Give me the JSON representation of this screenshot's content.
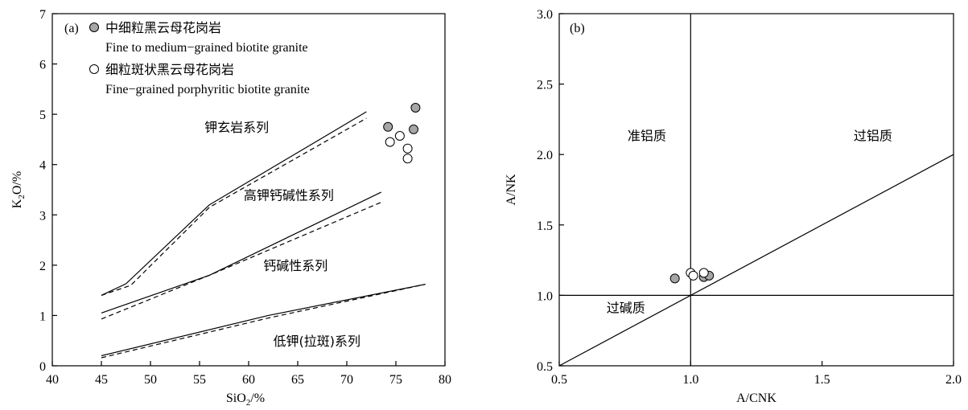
{
  "chart_data": [
    {
      "type": "scatter",
      "panel_label": "(a)",
      "xlabel": "SiO",
      "xlabel_sub": "2",
      "xlabel_suffix": "/%",
      "ylabel": "K",
      "ylabel_sub": "2",
      "ylabel_suffix": "O/%",
      "xlim": [
        40,
        80
      ],
      "ylim": [
        0,
        7
      ],
      "xticks": [
        40,
        45,
        50,
        55,
        60,
        65,
        70,
        75,
        80
      ],
      "yticks": [
        0,
        1,
        2,
        3,
        4,
        5,
        6,
        7
      ],
      "legend": [
        {
          "marker": "filled",
          "label_cn": "中细粒黑云母花岗岩",
          "label_en": "Fine to medium−grained biotite granite"
        },
        {
          "marker": "open",
          "label_cn": "细粒斑状黑云母花岗岩",
          "label_en": "Fine−grained porphyritic biotite granite"
        }
      ],
      "boundaries": [
        {
          "style": "solid",
          "points": [
            [
              45,
              1.4
            ],
            [
              47.5,
              1.63
            ],
            [
              56,
              3.2
            ],
            [
              72,
              5.05
            ]
          ]
        },
        {
          "style": "dashed",
          "points": [
            [
              45,
              1.4
            ],
            [
              48,
              1.6
            ],
            [
              56,
              3.15
            ],
            [
              72,
              4.92
            ]
          ]
        },
        {
          "style": "solid",
          "points": [
            [
              45,
              1.05
            ],
            [
              56,
              1.8
            ],
            [
              73.5,
              3.45
            ]
          ]
        },
        {
          "style": "dashed",
          "points": [
            [
              45,
              0.93
            ],
            [
              56,
              1.8
            ],
            [
              73.5,
              3.25
            ]
          ]
        },
        {
          "style": "solid",
          "points": [
            [
              45,
              0.2
            ],
            [
              62,
              1.0
            ],
            [
              78,
              1.62
            ]
          ]
        },
        {
          "style": "dashed",
          "points": [
            [
              45,
              0.16
            ],
            [
              62,
              0.95
            ],
            [
              78,
              1.62
            ]
          ]
        }
      ],
      "region_labels": [
        {
          "text": "钾玄岩系列",
          "x": 55.5,
          "y": 4.65
        },
        {
          "text": "高钾钙碱性系列",
          "x": 59.5,
          "y": 3.3
        },
        {
          "text": "钙碱性系列",
          "x": 61.5,
          "y": 1.9
        },
        {
          "text": "低钾(拉斑)系列",
          "x": 62.5,
          "y": 0.4
        }
      ],
      "series": [
        {
          "marker": "filled",
          "points": [
            [
              77,
              5.13
            ],
            [
              74.2,
              4.75
            ],
            [
              76.8,
              4.7
            ]
          ]
        },
        {
          "marker": "open",
          "points": [
            [
              74.4,
              4.45
            ],
            [
              75.4,
              4.57
            ],
            [
              76.2,
              4.32
            ],
            [
              76.2,
              4.12
            ]
          ]
        }
      ]
    },
    {
      "type": "scatter",
      "panel_label": "(b)",
      "xlabel": "A/CNK",
      "ylabel": "A/NK",
      "xlim": [
        0.5,
        2.0
      ],
      "ylim": [
        0.5,
        3.0
      ],
      "xticks": [
        "0.5",
        "1.0",
        "1.5",
        "2.0"
      ],
      "yticks": [
        "0.5",
        "1.0",
        "1.5",
        "2.0",
        "2.5",
        "3.0"
      ],
      "boundaries": [
        {
          "style": "solid",
          "points": [
            [
              1.0,
              0.5
            ],
            [
              1.0,
              3.0
            ]
          ]
        },
        {
          "style": "solid",
          "points": [
            [
              0.5,
              1.0
            ],
            [
              2.0,
              1.0
            ]
          ]
        },
        {
          "style": "solid",
          "points": [
            [
              0.5,
              0.5
            ],
            [
              2.0,
              2.0
            ]
          ]
        }
      ],
      "region_labels": [
        {
          "text": "准铝质",
          "x": 0.76,
          "y": 2.1
        },
        {
          "text": "过铝质",
          "x": 1.62,
          "y": 2.1
        },
        {
          "text": "过碱质",
          "x": 0.68,
          "y": 0.88
        }
      ],
      "series": [
        {
          "marker": "filled",
          "points": [
            [
              0.94,
              1.12
            ],
            [
              1.05,
              1.13
            ],
            [
              1.07,
              1.14
            ]
          ]
        },
        {
          "marker": "open",
          "points": [
            [
              1.0,
              1.16
            ],
            [
              1.01,
              1.14
            ],
            [
              1.05,
              1.16
            ]
          ]
        }
      ]
    }
  ]
}
